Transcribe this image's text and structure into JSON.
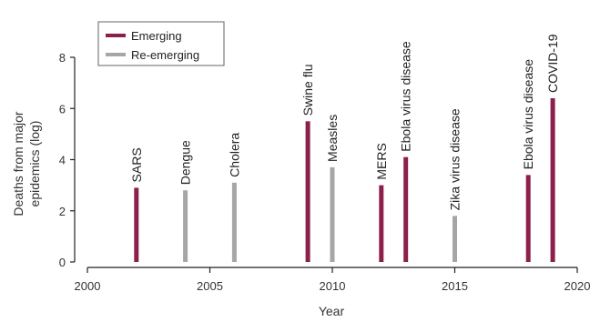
{
  "chart_data": {
    "type": "bar",
    "xlabel": "Year",
    "ylabel_lines": [
      "Deaths from major",
      "epidemics (log)"
    ],
    "xlim": [
      2000,
      2020
    ],
    "ylim": [
      0,
      8
    ],
    "x_ticks": [
      2000,
      2005,
      2010,
      2015,
      2020
    ],
    "y_ticks": [
      0,
      2,
      4,
      6,
      8
    ],
    "grid": false,
    "legend_position": "top-left",
    "colors": {
      "Emerging": "#8c1f4b",
      "Re-emerging": "#a6a6a6"
    },
    "series": [
      {
        "name": "Emerging",
        "points": [
          {
            "x": 2002,
            "y": 2.9,
            "label": "SARS"
          },
          {
            "x": 2009,
            "y": 5.5,
            "label": "Swine flu"
          },
          {
            "x": 2012,
            "y": 3.0,
            "label": "MERS"
          },
          {
            "x": 2013,
            "y": 4.1,
            "label": "Ebola virus disease"
          },
          {
            "x": 2018,
            "y": 3.4,
            "label": "Ebola virus disease"
          },
          {
            "x": 2019,
            "y": 6.4,
            "label": "COVID-19"
          }
        ]
      },
      {
        "name": "Re-emerging",
        "points": [
          {
            "x": 2004,
            "y": 2.8,
            "label": "Dengue"
          },
          {
            "x": 2006,
            "y": 3.1,
            "label": "Cholera"
          },
          {
            "x": 2010,
            "y": 3.7,
            "label": "Measles"
          },
          {
            "x": 2015,
            "y": 1.8,
            "label": "Zika virus disease"
          }
        ]
      }
    ]
  }
}
